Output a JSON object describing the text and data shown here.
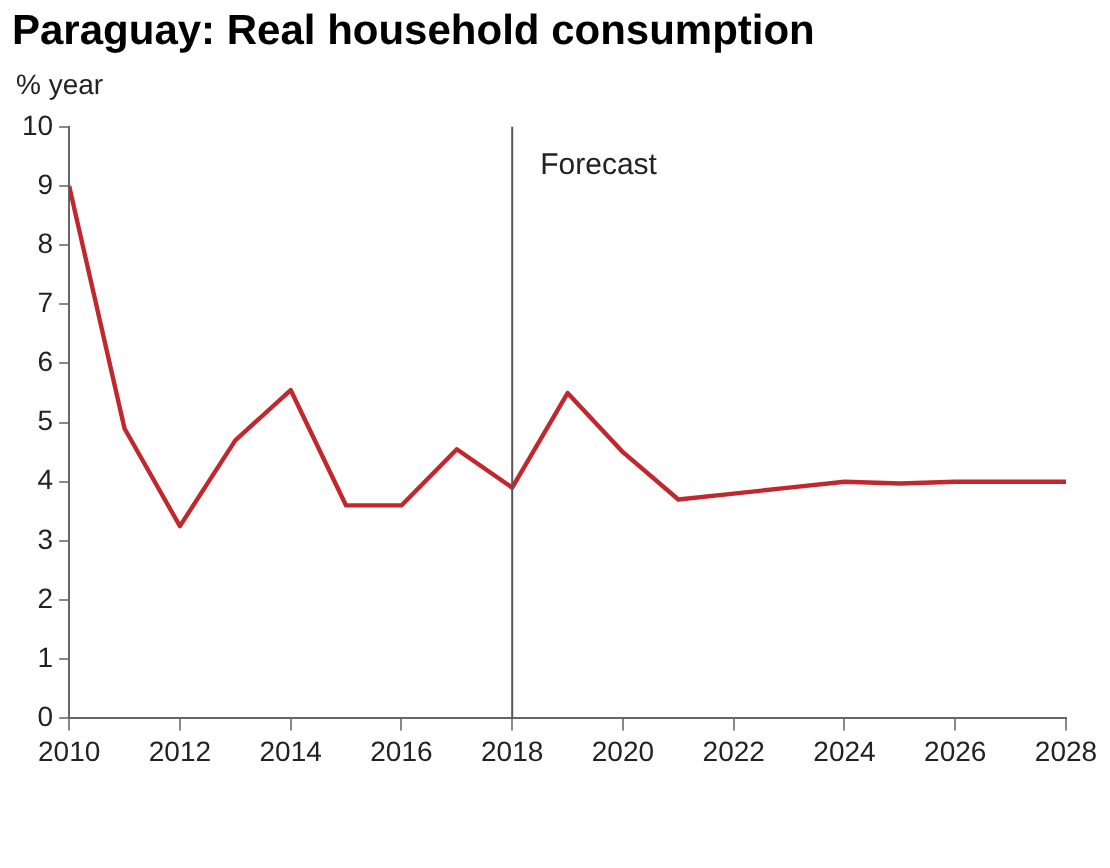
{
  "chart_data": {
    "type": "line",
    "title": "Paraguay: Real household consumption",
    "ylabel": "% year",
    "x": [
      2010,
      2011,
      2012,
      2013,
      2014,
      2015,
      2016,
      2017,
      2018,
      2019,
      2020,
      2021,
      2022,
      2023,
      2024,
      2025,
      2026,
      2027,
      2028
    ],
    "series": [
      {
        "color": "#c0282e",
        "values": [
          9.0,
          4.9,
          3.25,
          4.7,
          5.55,
          3.6,
          3.6,
          4.55,
          3.9,
          5.5,
          4.5,
          3.7,
          3.8,
          3.9,
          4.0,
          3.97,
          4.0,
          4.0,
          4.0
        ]
      }
    ],
    "xlim": [
      2010,
      2028
    ],
    "xticks": [
      2010,
      2012,
      2014,
      2016,
      2018,
      2020,
      2022,
      2024,
      2026,
      2028
    ],
    "ylim": [
      0,
      10
    ],
    "yticks": [
      0,
      1,
      2,
      3,
      4,
      5,
      6,
      7,
      8,
      9,
      10
    ],
    "ref_lines": [
      {
        "axis": "x",
        "value": 2018,
        "label": "Forecast",
        "color": "#555555"
      }
    ],
    "grid": false,
    "legend": false,
    "marker": "none",
    "line_style": "solid"
  }
}
